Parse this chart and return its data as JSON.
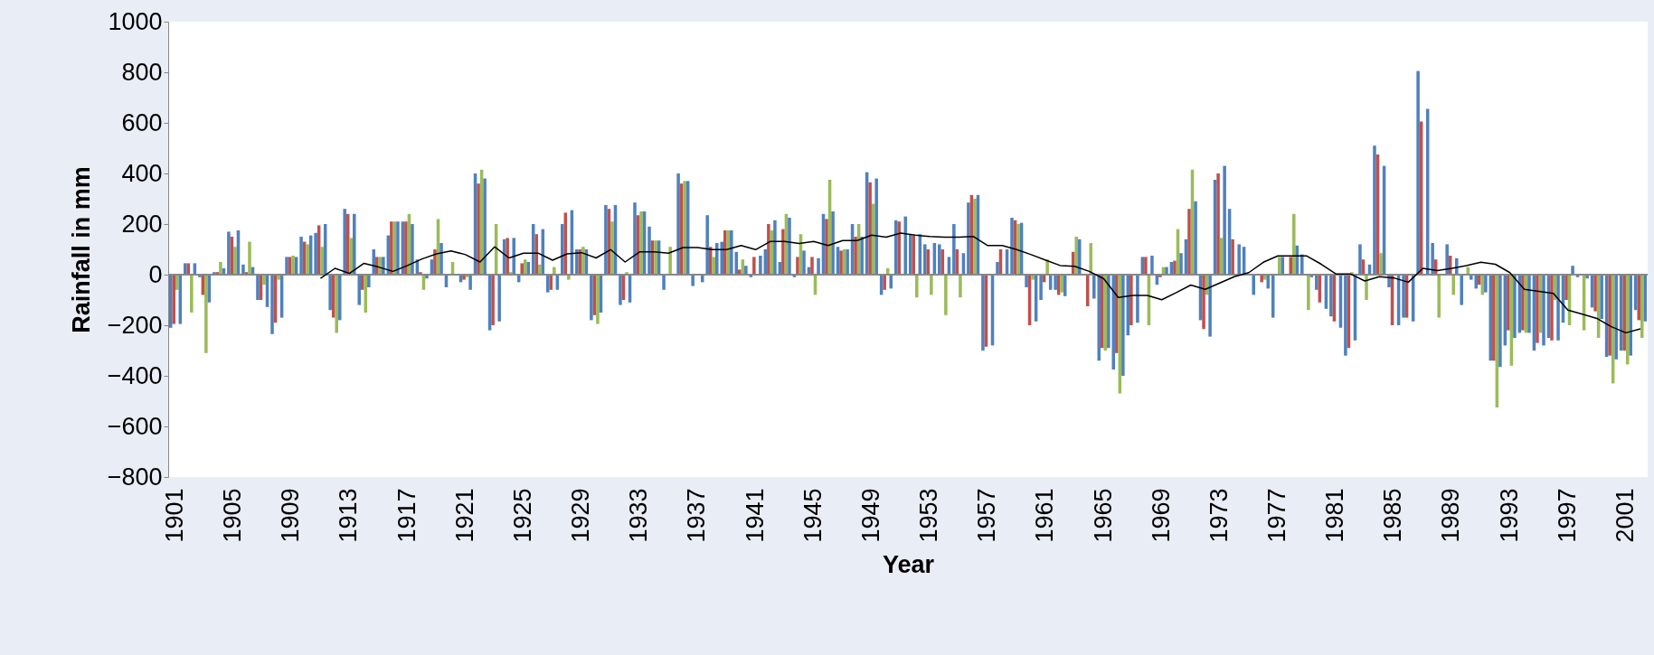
{
  "chart_data": {
    "type": "bar",
    "xlabel": "Year",
    "ylabel": "Rainfall in mm",
    "categories": [
      "1901",
      null,
      null,
      null,
      "1905",
      null,
      null,
      null,
      "1909",
      null,
      null,
      null,
      "1913",
      null,
      null,
      null,
      "1917",
      null,
      null,
      null,
      "1921",
      null,
      null,
      null,
      "1925",
      null,
      null,
      null,
      "1929",
      null,
      null,
      null,
      "1933",
      null,
      null,
      null,
      "1937",
      null,
      null,
      null,
      "1941",
      null,
      null,
      null,
      "1945",
      null,
      null,
      null,
      "1949",
      null,
      null,
      null,
      "1953",
      null,
      null,
      null,
      "1957",
      null,
      null,
      null,
      "1961",
      null,
      null,
      null,
      "1965",
      null,
      null,
      null,
      "1969",
      null,
      null,
      null,
      "1973",
      null,
      null,
      null,
      "1977",
      null,
      null,
      null,
      "1981",
      null,
      null,
      null,
      "1985",
      null,
      null,
      null,
      "1989",
      null,
      null,
      null,
      "1993",
      null,
      null,
      null,
      "1997",
      null,
      null,
      null,
      "2001",
      null
    ],
    "series": [
      {
        "color": "#4f81bd",
        "values": [
          -210,
          45,
          -10,
          10,
          170,
          40,
          -100,
          -235,
          70,
          150,
          165,
          -140,
          260,
          -120,
          100,
          155,
          210,
          60,
          60,
          -50,
          -30,
          400,
          -220,
          140,
          -30,
          200,
          -70,
          200,
          100,
          -180,
          275,
          -120,
          285,
          190,
          -60,
          400,
          -45,
          235,
          130,
          90,
          -10,
          100,
          50,
          -10,
          30,
          240,
          110,
          200,
          405,
          -80,
          215,
          160,
          120,
          120,
          200,
          285,
          -300,
          50,
          225,
          -50,
          -100,
          -60,
          0,
          0,
          -340,
          -375,
          -240,
          70,
          -40,
          50,
          140,
          -180,
          375,
          260,
          110,
          0,
          -170,
          0,
          80,
          -60,
          -165,
          -320,
          120,
          510,
          -50,
          -170,
          805,
          125,
          120,
          -120,
          -55,
          -340,
          -280,
          -230,
          -300,
          -250,
          -190,
          -10,
          -130,
          -325,
          -300,
          -140
        ]
      },
      {
        "color": "#c0504d",
        "values": [
          -195,
          45,
          -80,
          10,
          150,
          10,
          -100,
          -190,
          70,
          130,
          195,
          -170,
          240,
          -60,
          70,
          210,
          210,
          10,
          100,
          null,
          -20,
          360,
          -200,
          145,
          45,
          160,
          -60,
          245,
          100,
          -160,
          260,
          -100,
          235,
          135,
          0,
          360,
          0,
          110,
          175,
          20,
          70,
          200,
          180,
          70,
          70,
          220,
          95,
          150,
          365,
          -60,
          210,
          155,
          100,
          100,
          100,
          315,
          -285,
          100,
          215,
          -200,
          -30,
          -80,
          90,
          -125,
          -290,
          -310,
          -200,
          70,
          -10,
          55,
          260,
          -215,
          400,
          140,
          0,
          -30,
          0,
          70,
          0,
          -110,
          -185,
          -290,
          60,
          475,
          -200,
          -170,
          605,
          60,
          75,
          0,
          -40,
          -340,
          -220,
          -220,
          -270,
          -260,
          -100,
          0,
          -145,
          -320,
          -300,
          -180
        ]
      },
      {
        "color": "#9bbb59",
        "values": [
          -60,
          -150,
          -310,
          50,
          110,
          130,
          -40,
          -20,
          75,
          120,
          110,
          -230,
          145,
          -150,
          70,
          210,
          240,
          -60,
          220,
          50,
          -10,
          415,
          200,
          10,
          60,
          40,
          30,
          -20,
          110,
          -195,
          210,
          10,
          250,
          135,
          110,
          370,
          null,
          70,
          175,
          60,
          0,
          175,
          240,
          160,
          -80,
          375,
          100,
          200,
          280,
          25,
          0,
          -90,
          -80,
          -160,
          -90,
          300,
          0,
          0,
          200,
          -20,
          60,
          -70,
          150,
          125,
          -300,
          -470,
          0,
          -200,
          30,
          180,
          415,
          -80,
          145,
          0,
          0,
          -20,
          70,
          240,
          -140,
          0,
          0,
          10,
          -100,
          85,
          0,
          0,
          0,
          -170,
          -80,
          30,
          -80,
          -525,
          -360,
          -230,
          -230,
          -100,
          -200,
          -220,
          -250,
          -430,
          -355,
          -250
        ]
      },
      {
        "color": "#4f81bd",
        "values": [
          -195,
          45,
          -110,
          25,
          175,
          30,
          -128,
          -170,
          70,
          155,
          200,
          -180,
          240,
          -50,
          70,
          210,
          200,
          -15,
          125,
          null,
          -60,
          380,
          -185,
          145,
          50,
          180,
          -60,
          255,
          100,
          -150,
          275,
          -110,
          250,
          135,
          null,
          370,
          -30,
          125,
          175,
          35,
          75,
          215,
          225,
          95,
          65,
          250,
          100,
          150,
          380,
          -55,
          230,
          160,
          125,
          70,
          85,
          315,
          -280,
          100,
          205,
          -185,
          -60,
          -85,
          140,
          -95,
          -290,
          -400,
          -190,
          75,
          30,
          85,
          290,
          -245,
          430,
          120,
          -80,
          -55,
          70,
          115,
          -10,
          -135,
          -210,
          -260,
          40,
          430,
          -200,
          -185,
          655,
          0,
          65,
          -20,
          -70,
          -365,
          -250,
          -230,
          -280,
          -260,
          35,
          -15,
          -175,
          -335,
          -320,
          -185
        ]
      },
      {
        "type": "line",
        "color": "#000000",
        "values": [
          null,
          null,
          null,
          null,
          null,
          null,
          null,
          null,
          null,
          null,
          -15,
          25,
          5,
          45,
          30,
          13,
          36,
          62,
          82,
          94,
          79,
          50,
          110,
          66,
          85,
          85,
          57,
          82,
          87,
          66,
          99,
          50,
          90,
          90,
          85,
          107,
          107,
          99,
          99,
          115,
          99,
          131,
          131,
          123,
          131,
          115,
          135,
          135,
          156,
          148,
          164,
          156,
          151,
          148,
          148,
          151,
          115,
          115,
          99,
          79,
          57,
          36,
          33,
          13,
          -16,
          -90,
          -82,
          -82,
          -99,
          -71,
          -41,
          -58,
          -33,
          -8,
          8,
          49,
          74,
          74,
          74,
          41,
          3,
          3,
          -25,
          -8,
          -13,
          -30,
          25,
          16,
          25,
          36,
          49,
          41,
          8,
          -58,
          -66,
          -74,
          -140,
          -156,
          -173,
          -206,
          -230,
          -214
        ]
      }
    ],
    "ylim": [
      -800,
      1000
    ],
    "yticks": [
      -800,
      -600,
      -400,
      -200,
      0,
      200,
      400,
      600,
      800,
      1000
    ],
    "ref_lines": [
      {
        "axis": "y",
        "value": 0,
        "color": "#888888"
      }
    ],
    "grid": false,
    "legend": false
  }
}
